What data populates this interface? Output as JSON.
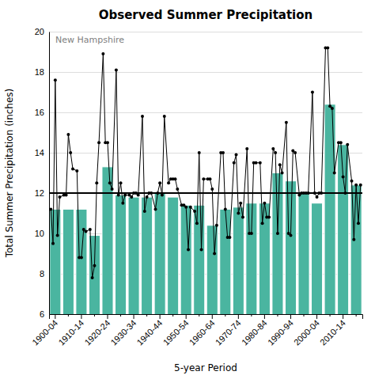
{
  "chart_data": {
    "type": "bar",
    "title": "Observed Summer Precipitation",
    "subtitle": "New Hampshire",
    "x_label": "5-year Period",
    "y_label": "Total Summer Precipitation (inches)",
    "categories": [
      "1900-04",
      null,
      "1910-14",
      null,
      "1920-24",
      null,
      "1930-34",
      null,
      "1940-44",
      null,
      "1950-54",
      null,
      "1960-64",
      null,
      "1970-74",
      null,
      "1980-84",
      null,
      "1990-94",
      null,
      "2000-04",
      null,
      "2010-14",
      null
    ],
    "series": [
      {
        "type": "bar",
        "color": "#4ab5a0",
        "values": [
          11.2,
          11.2,
          11.2,
          9.9,
          13.3,
          11.9,
          11.8,
          11.8,
          12.0,
          11.8,
          11.4,
          11.4,
          10.4,
          11.2,
          11.3,
          11.5,
          11.5,
          13.0,
          12.6,
          12.0,
          11.5,
          16.4,
          14.4,
          12.4
        ]
      },
      {
        "type": "line",
        "color": "black",
        "marker": "circle",
        "values": [
          [
            11.2,
            9.5,
            17.6,
            9.9,
            11.8
          ],
          [
            11.9,
            11.9,
            14.9,
            14.0,
            13.2
          ],
          [
            13.1,
            8.8,
            8.8,
            10.2,
            10.1
          ],
          [
            10.2,
            7.8,
            8.4,
            12.5,
            14.5
          ],
          [
            18.9,
            14.5,
            14.5,
            12.5,
            12.2
          ],
          [
            18.1,
            11.9,
            12.5,
            11.5,
            11.9
          ],
          [
            11.9,
            11.8,
            12.0,
            12.0,
            11.9
          ],
          [
            15.8,
            11.1,
            11.8,
            12.0,
            12.0
          ],
          [
            11.2,
            12.0,
            12.5,
            11.9,
            15.8
          ],
          [
            12.5,
            12.7,
            12.7,
            12.7,
            12.2
          ],
          [
            11.4,
            11.4,
            11.3,
            9.2,
            11.3
          ],
          [
            11.1,
            10.5,
            14.0,
            9.2,
            12.7
          ],
          [
            12.7,
            12.7,
            12.2,
            9.0,
            10.4
          ],
          [
            14.0,
            14.0,
            11.2,
            9.8,
            9.8
          ],
          [
            13.5,
            13.9,
            11.0,
            11.5,
            10.8
          ],
          [
            14.2,
            10.0,
            10.0,
            13.5,
            13.5
          ],
          [
            13.5,
            10.5,
            11.5,
            10.8,
            10.8
          ],
          [
            14.2,
            14.0,
            10.0,
            13.4,
            13.0
          ],
          [
            15.5,
            10.0,
            9.9,
            14.1,
            14.0
          ],
          [
            11.9,
            12.0,
            12.0,
            12.0,
            12.0
          ],
          [
            17.0,
            12.0,
            11.8,
            12.0,
            12.0
          ],
          [
            19.2,
            19.2,
            16.3,
            16.2,
            13.0
          ],
          [
            14.5,
            14.5,
            12.8,
            12.0,
            14.4
          ],
          [
            12.6,
            9.7,
            12.4,
            10.5,
            12.4
          ]
        ]
      }
    ],
    "mean_line": 12.0,
    "ylim": [
      6,
      20
    ],
    "yticks": [
      6,
      8,
      10,
      12,
      14,
      16,
      18,
      20
    ],
    "grid": true
  }
}
